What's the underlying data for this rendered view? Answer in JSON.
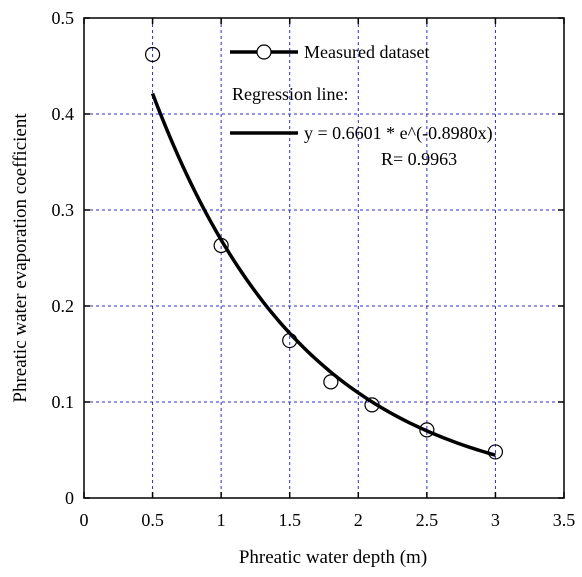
{
  "chart_data": {
    "type": "scatter",
    "xlabel": "Phreatic water depth (m)",
    "ylabel": "Phreatic water evaporation coefficient",
    "xlim": [
      0,
      3.5
    ],
    "ylim": [
      0,
      0.5
    ],
    "x_ticks": [
      0,
      0.5,
      1,
      1.5,
      2,
      2.5,
      3,
      3.5
    ],
    "y_ticks": [
      0,
      0.1,
      0.2,
      0.3,
      0.4,
      0.5
    ],
    "x_tick_labels": [
      "0",
      "0.5",
      "1",
      "1.5",
      "2",
      "2.5",
      "3",
      "3.5"
    ],
    "y_tick_labels": [
      "0",
      "0.1",
      "0.2",
      "0.3",
      "0.4",
      "0.5"
    ],
    "grid": true,
    "legend_position": "top-right",
    "series": [
      {
        "name": "Measured dataset",
        "kind": "markers",
        "marker": "open-circle",
        "x": [
          0.5,
          1.0,
          1.5,
          1.8,
          2.1,
          2.5,
          3.0
        ],
        "y": [
          0.462,
          0.263,
          0.164,
          0.121,
          0.097,
          0.071,
          0.048
        ]
      },
      {
        "name": "y = 0.6601 * e^(-0.8980x)",
        "kind": "fit-line",
        "coefficients": {
          "a": 0.6601,
          "b": -0.898
        },
        "x_range": [
          0.5,
          3.0
        ]
      }
    ],
    "legend": {
      "measured_label": "Measured dataset",
      "regression_heading": "Regression line:",
      "equation_label": "y = 0.6601 * e^(-0.8980x)",
      "r_label": "R= 0.9963"
    },
    "colors": {
      "grid": "#2b2bd6",
      "series": "#000000",
      "axis": "#000000"
    }
  }
}
